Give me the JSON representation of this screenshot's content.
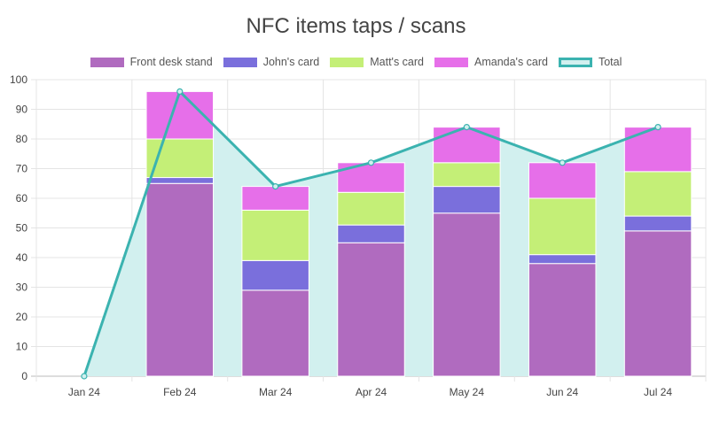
{
  "chart_data": {
    "type": "bar",
    "title": "NFC items taps / scans",
    "categories": [
      "Jan 24",
      "Feb 24",
      "Mar 24",
      "Apr 24",
      "May 24",
      "Jun 24",
      "Jul 24"
    ],
    "stacked": true,
    "series": [
      {
        "name": "Front desk stand",
        "color": "#b06bbf",
        "values": [
          0,
          65,
          29,
          45,
          55,
          38,
          49
        ]
      },
      {
        "name": "John's card",
        "color": "#7a6fdc",
        "values": [
          0,
          2,
          10,
          6,
          9,
          3,
          5
        ]
      },
      {
        "name": "Matt's card",
        "color": "#c4ef77",
        "values": [
          0,
          13,
          17,
          11,
          8,
          19,
          15
        ]
      },
      {
        "name": "Amanda's card",
        "color": "#e66fe9",
        "values": [
          0,
          16,
          8,
          10,
          12,
          12,
          15
        ]
      }
    ],
    "line_series": {
      "name": "Total",
      "type": "area",
      "color": "#3bb3b0",
      "fill": "#d2f0ef",
      "values": [
        0,
        96,
        64,
        72,
        84,
        72,
        84
      ]
    },
    "ylim": [
      0,
      100
    ],
    "yticks": [
      0,
      10,
      20,
      30,
      40,
      50,
      60,
      70,
      80,
      90,
      100
    ],
    "grid": true,
    "legend_position": "top"
  }
}
